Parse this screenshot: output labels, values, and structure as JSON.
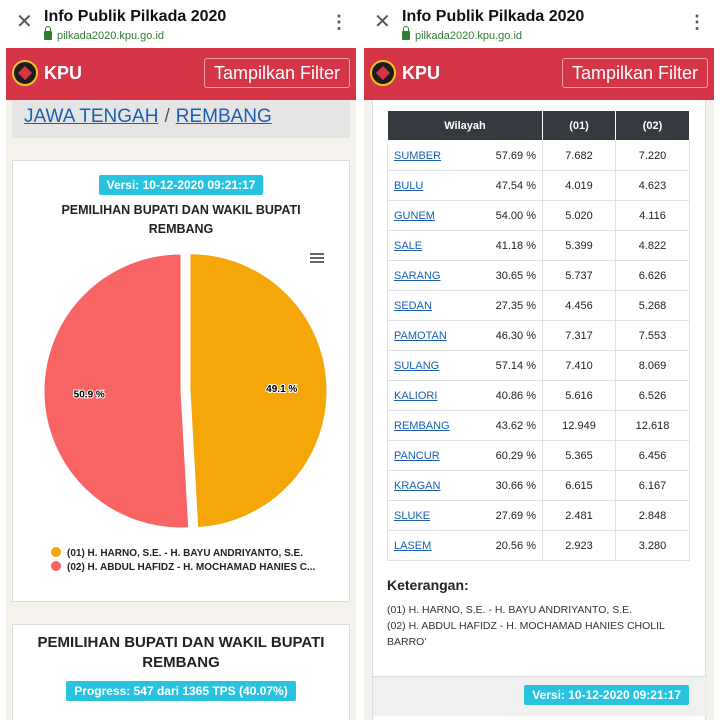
{
  "browser": {
    "title": "Info Publik Pilkada 2020",
    "url": "pilkada2020.kpu.go.id"
  },
  "header": {
    "brand": "KPU",
    "filter_label": "Tampilkan Filter"
  },
  "breadcrumb": {
    "province": "JAWA TENGAH",
    "separator": "/",
    "regency": "REMBANG"
  },
  "chart_card": {
    "version": "Versi: 10-12-2020 09:21:17",
    "title_line1": "PEMILIHAN BUPATI DAN WAKIL BUPATI",
    "title_line2": "REMBANG"
  },
  "chart_data": {
    "type": "pie",
    "title": "PEMILIHAN BUPATI DAN WAKIL BUPATI REMBANG",
    "slices": [
      {
        "name": "(01) H. HARNO, S.E. - H. BAYU ANDRIYANTO, S.E.",
        "value": 49.1,
        "label": "49.1 %",
        "color": "#f5a70a"
      },
      {
        "name": "(02) H. ABDUL HAFIDZ - H. MOCHAMAD HANIES C...",
        "value": 50.9,
        "label": "50.9 %",
        "color": "#f86464"
      }
    ],
    "legend_position": "bottom"
  },
  "progress_card": {
    "title_line1": "PEMILIHAN BUPATI DAN WAKIL BUPATI",
    "title_line2": "REMBANG",
    "progress": "Progress: 547 dari 1365 TPS (40.07%)"
  },
  "table": {
    "headers": [
      "Wilayah",
      "(01)",
      "(02)"
    ],
    "rows": [
      {
        "name": "SUMBER",
        "pct": "57.69 %",
        "c1": "7.682",
        "c2": "7.220"
      },
      {
        "name": "BULU",
        "pct": "47.54 %",
        "c1": "4.019",
        "c2": "4.623"
      },
      {
        "name": "GUNEM",
        "pct": "54.00 %",
        "c1": "5.020",
        "c2": "4.116"
      },
      {
        "name": "SALE",
        "pct": "41.18 %",
        "c1": "5.399",
        "c2": "4.822"
      },
      {
        "name": "SARANG",
        "pct": "30.65 %",
        "c1": "5.737",
        "c2": "6.626"
      },
      {
        "name": "SEDAN",
        "pct": "27.35 %",
        "c1": "4.456",
        "c2": "5.268"
      },
      {
        "name": "PAMOTAN",
        "pct": "46.30 %",
        "c1": "7.317",
        "c2": "7.553"
      },
      {
        "name": "SULANG",
        "pct": "57.14 %",
        "c1": "7.410",
        "c2": "8.069"
      },
      {
        "name": "KALIORI",
        "pct": "40.86 %",
        "c1": "5.616",
        "c2": "6.526"
      },
      {
        "name": "REMBANG",
        "pct": "43.62 %",
        "c1": "12.949",
        "c2": "12.618"
      },
      {
        "name": "PANCUR",
        "pct": "60.29 %",
        "c1": "5.365",
        "c2": "6.456"
      },
      {
        "name": "KRAGAN",
        "pct": "30.66 %",
        "c1": "6.615",
        "c2": "6.167"
      },
      {
        "name": "SLUKE",
        "pct": "27.69 %",
        "c1": "2.481",
        "c2": "2.848"
      },
      {
        "name": "LASEM",
        "pct": "20.56 %",
        "c1": "2.923",
        "c2": "3.280"
      }
    ]
  },
  "keterangan": {
    "heading": "Keterangan:",
    "line1": "(01) H. HARNO, S.E. - H. BAYU ANDRIYANTO, S.E.",
    "line2": "(02) H. ABDUL HAFIDZ - H. MOCHAMAD HANIES CHOLIL",
    "line3": "BARRO'",
    "version": "Versi: 10-12-2020 09:21:17"
  }
}
